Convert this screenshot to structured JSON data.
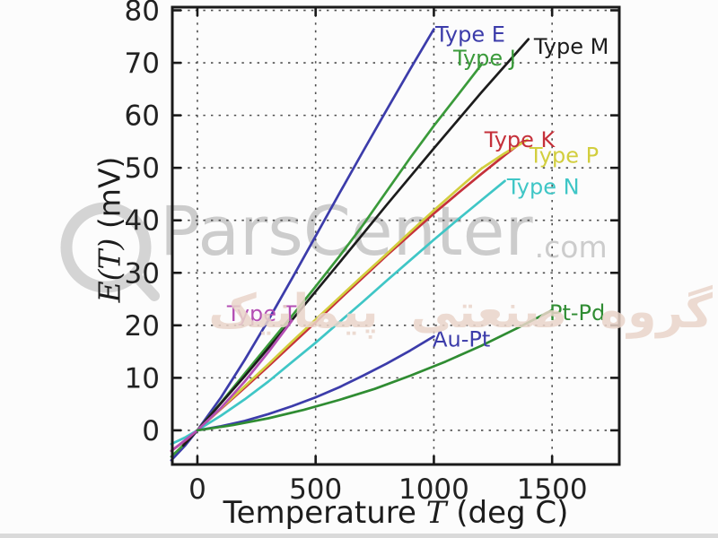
{
  "watermark": {
    "brand": "ParsCenter",
    "brand_suffix": ".com",
    "brand_color": "#cccccc",
    "overlay_text": "گروه صنعتی پیمانیک",
    "overlay_color": "#ead5ca"
  },
  "chart_data": {
    "type": "line",
    "xlabel": "Temperature T (deg C)",
    "xlabel_parts": [
      "Temperature ",
      "T",
      " (deg C)"
    ],
    "ylabel": "E(T) (mV)",
    "ylabel_parts": [
      "E(T)",
      " (mV)"
    ],
    "xlim": [
      -106,
      1784
    ],
    "ylim": [
      -6.5,
      80.6
    ],
    "xticks": [
      0,
      500,
      1000,
      1500
    ],
    "yticks": [
      0,
      10,
      20,
      30,
      40,
      50,
      60,
      70,
      80
    ],
    "grid": "dotted",
    "legend_position": "inline-labels",
    "axis_color": "#1a1a1a",
    "grid_color": "#4d4d4d",
    "tick_label_color": "#222222",
    "series": [
      {
        "name": "Type E",
        "color": "#3c3caa",
        "label_at": [
          1006,
          74
        ],
        "points": [
          [
            -110,
            -5.7
          ],
          [
            -50,
            -2.8
          ],
          [
            0,
            0
          ],
          [
            100,
            6.3
          ],
          [
            200,
            13.4
          ],
          [
            300,
            21.0
          ],
          [
            400,
            28.9
          ],
          [
            500,
            37.0
          ],
          [
            600,
            45.1
          ],
          [
            700,
            53.1
          ],
          [
            800,
            61.0
          ],
          [
            900,
            68.8
          ],
          [
            1000,
            76.4
          ]
        ]
      },
      {
        "name": "Type J",
        "color": "#3a9a3a",
        "label_at": [
          1082,
          69.5
        ],
        "points": [
          [
            -110,
            -5.0
          ],
          [
            -50,
            -2.4
          ],
          [
            0,
            0
          ],
          [
            100,
            5.3
          ],
          [
            200,
            10.8
          ],
          [
            300,
            16.3
          ],
          [
            400,
            21.8
          ],
          [
            500,
            27.4
          ],
          [
            600,
            33.1
          ],
          [
            700,
            39.1
          ],
          [
            800,
            45.5
          ],
          [
            900,
            51.9
          ],
          [
            1000,
            58.0
          ],
          [
            1100,
            63.8
          ],
          [
            1200,
            69.6
          ]
        ]
      },
      {
        "name": "Type M",
        "color": "#1c1c1c",
        "label_at": [
          1423,
          71.7
        ],
        "points": [
          [
            -60,
            -2.9
          ],
          [
            0,
            0
          ],
          [
            200,
            10.3
          ],
          [
            400,
            21.0
          ],
          [
            600,
            31.9
          ],
          [
            800,
            42.9
          ],
          [
            1000,
            53.7
          ],
          [
            1200,
            64.3
          ],
          [
            1400,
            74.5
          ]
        ]
      },
      {
        "name": "Type K",
        "color": "#c5303a",
        "label_at": [
          1214,
          54
        ],
        "points": [
          [
            -110,
            -3.9
          ],
          [
            -50,
            -1.9
          ],
          [
            0,
            0
          ],
          [
            100,
            4.1
          ],
          [
            200,
            8.1
          ],
          [
            300,
            12.2
          ],
          [
            400,
            16.4
          ],
          [
            500,
            20.6
          ],
          [
            600,
            24.9
          ],
          [
            700,
            29.1
          ],
          [
            800,
            33.3
          ],
          [
            900,
            37.3
          ],
          [
            1000,
            41.3
          ],
          [
            1100,
            45.1
          ],
          [
            1200,
            48.8
          ],
          [
            1300,
            52.4
          ],
          [
            1372,
            54.9
          ]
        ]
      },
      {
        "name": "Type P",
        "color": "#d2ce3e",
        "label_at": [
          1404,
          51
        ],
        "points": [
          [
            0,
            0
          ],
          [
            100,
            4.2
          ],
          [
            200,
            8.4
          ],
          [
            300,
            12.6
          ],
          [
            400,
            16.9
          ],
          [
            500,
            21.1
          ],
          [
            600,
            25.3
          ],
          [
            700,
            29.5
          ],
          [
            800,
            33.6
          ],
          [
            900,
            37.8
          ],
          [
            1000,
            41.9
          ],
          [
            1100,
            45.9
          ],
          [
            1200,
            49.8
          ],
          [
            1300,
            52.8
          ],
          [
            1395,
            55.3
          ]
        ]
      },
      {
        "name": "Type N",
        "color": "#3fc6c6",
        "label_at": [
          1309,
          45
        ],
        "points": [
          [
            -110,
            -2.6
          ],
          [
            -50,
            -1.3
          ],
          [
            0,
            0
          ],
          [
            100,
            2.8
          ],
          [
            200,
            5.9
          ],
          [
            300,
            9.3
          ],
          [
            400,
            13.0
          ],
          [
            500,
            16.7
          ],
          [
            600,
            20.6
          ],
          [
            700,
            24.5
          ],
          [
            800,
            28.5
          ],
          [
            900,
            32.4
          ],
          [
            1000,
            36.3
          ],
          [
            1100,
            40.1
          ],
          [
            1200,
            43.8
          ],
          [
            1300,
            47.5
          ]
        ]
      },
      {
        "name": "Type T",
        "color": "#b44fb4",
        "label_at": [
          125,
          20.8
        ],
        "points": [
          [
            -110,
            -3.9
          ],
          [
            -50,
            -1.8
          ],
          [
            0,
            0
          ],
          [
            100,
            4.3
          ],
          [
            200,
            9.3
          ],
          [
            300,
            14.9
          ],
          [
            400,
            20.9
          ]
        ]
      },
      {
        "name": "Au-Pt",
        "color": "#3c3caa",
        "label_at": [
          995,
          16
        ],
        "points": [
          [
            0,
            0
          ],
          [
            100,
            0.8
          ],
          [
            200,
            1.8
          ],
          [
            300,
            3.1
          ],
          [
            400,
            4.6
          ],
          [
            500,
            6.3
          ],
          [
            600,
            8.2
          ],
          [
            700,
            10.4
          ],
          [
            800,
            12.7
          ],
          [
            900,
            15.2
          ],
          [
            1000,
            17.9
          ]
        ]
      },
      {
        "name": "Pt-Pd",
        "color": "#2f8c32",
        "label_at": [
          1488,
          21
        ],
        "points": [
          [
            0,
            0
          ],
          [
            150,
            1.0
          ],
          [
            300,
            2.3
          ],
          [
            450,
            3.9
          ],
          [
            600,
            5.8
          ],
          [
            750,
            7.9
          ],
          [
            900,
            10.4
          ],
          [
            1050,
            13.1
          ],
          [
            1200,
            16.1
          ],
          [
            1350,
            19.4
          ],
          [
            1500,
            22.9
          ]
        ]
      }
    ]
  }
}
